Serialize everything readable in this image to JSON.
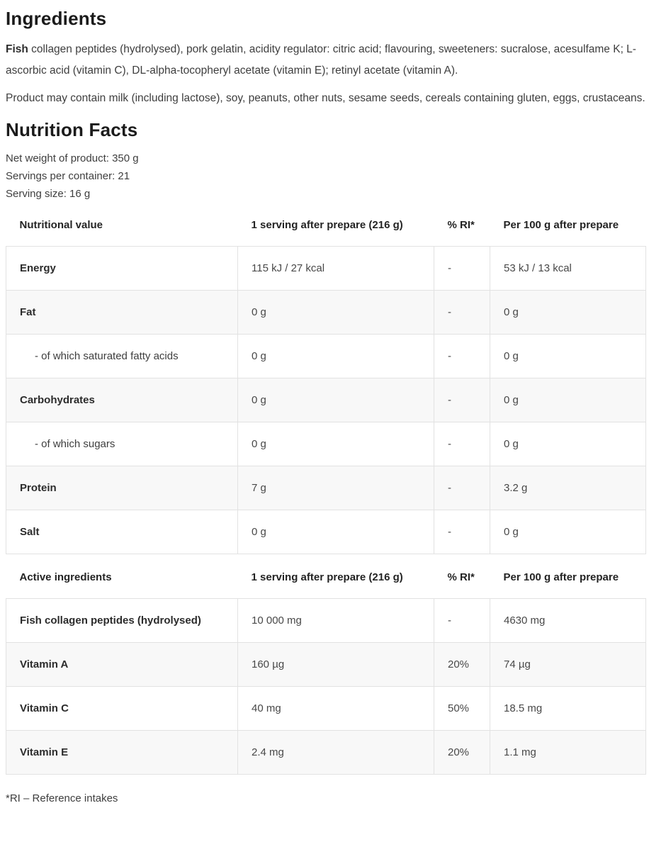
{
  "ingredients": {
    "title": "Ingredients",
    "composition_bold": "Fish",
    "composition_rest": " collagen peptides (hydrolysed), pork gelatin, acidity regulator: citric acid; flavouring, sweeteners: sucralose, acesulfame K; L-ascorbic acid (vitamin C), DL-alpha-tocopheryl acetate (vitamin E); retinyl acetate (vitamin A).",
    "allergens": "Product may contain milk (including lactose), soy, peanuts, other nuts, sesame seeds, cereals containing gluten, eggs, crustaceans."
  },
  "nutrition": {
    "title": "Nutrition Facts",
    "net_weight": "Net weight of product: 350 g",
    "servings_per_container": "Servings per container: 21",
    "serving_size": "Serving size: 16 g",
    "table1": {
      "headers": [
        "Nutritional value",
        "1 serving after prepare (216 g)",
        "% RI*",
        "Per 100 g after prepare"
      ],
      "rows": [
        {
          "label": "Energy",
          "serving": "115 kJ / 27 kcal",
          "ri": "-",
          "per100": "53 kJ / 13 kcal"
        },
        {
          "label": "Fat",
          "serving": "0 g",
          "ri": "-",
          "per100": "0 g"
        },
        {
          "label": "- of which saturated fatty acids",
          "serving": "0 g",
          "ri": "-",
          "per100": "0 g"
        },
        {
          "label": "Carbohydrates",
          "serving": "0 g",
          "ri": "-",
          "per100": "0 g"
        },
        {
          "label": "- of which sugars",
          "serving": "0 g",
          "ri": "-",
          "per100": "0 g"
        },
        {
          "label": "Protein",
          "serving": "7 g",
          "ri": "-",
          "per100": "3.2 g"
        },
        {
          "label": "Salt",
          "serving": "0 g",
          "ri": "-",
          "per100": "0 g"
        }
      ]
    },
    "table2": {
      "headers": [
        "Active ingredients",
        "1 serving after prepare (216 g)",
        "% RI*",
        "Per 100 g after prepare"
      ],
      "rows": [
        {
          "label": "Fish collagen peptides (hydrolysed)",
          "serving": "10 000 mg",
          "ri": "-",
          "per100": "4630 mg"
        },
        {
          "label": "Vitamin A",
          "serving": "160 µg",
          "ri": "20%",
          "per100": "74 µg"
        },
        {
          "label": "Vitamin C",
          "serving": "40 mg",
          "ri": "50%",
          "per100": "18.5 mg"
        },
        {
          "label": "Vitamin E",
          "serving": "2.4 mg",
          "ri": "20%",
          "per100": "1.1 mg"
        }
      ]
    },
    "footnote": "*RI – Reference intakes"
  }
}
